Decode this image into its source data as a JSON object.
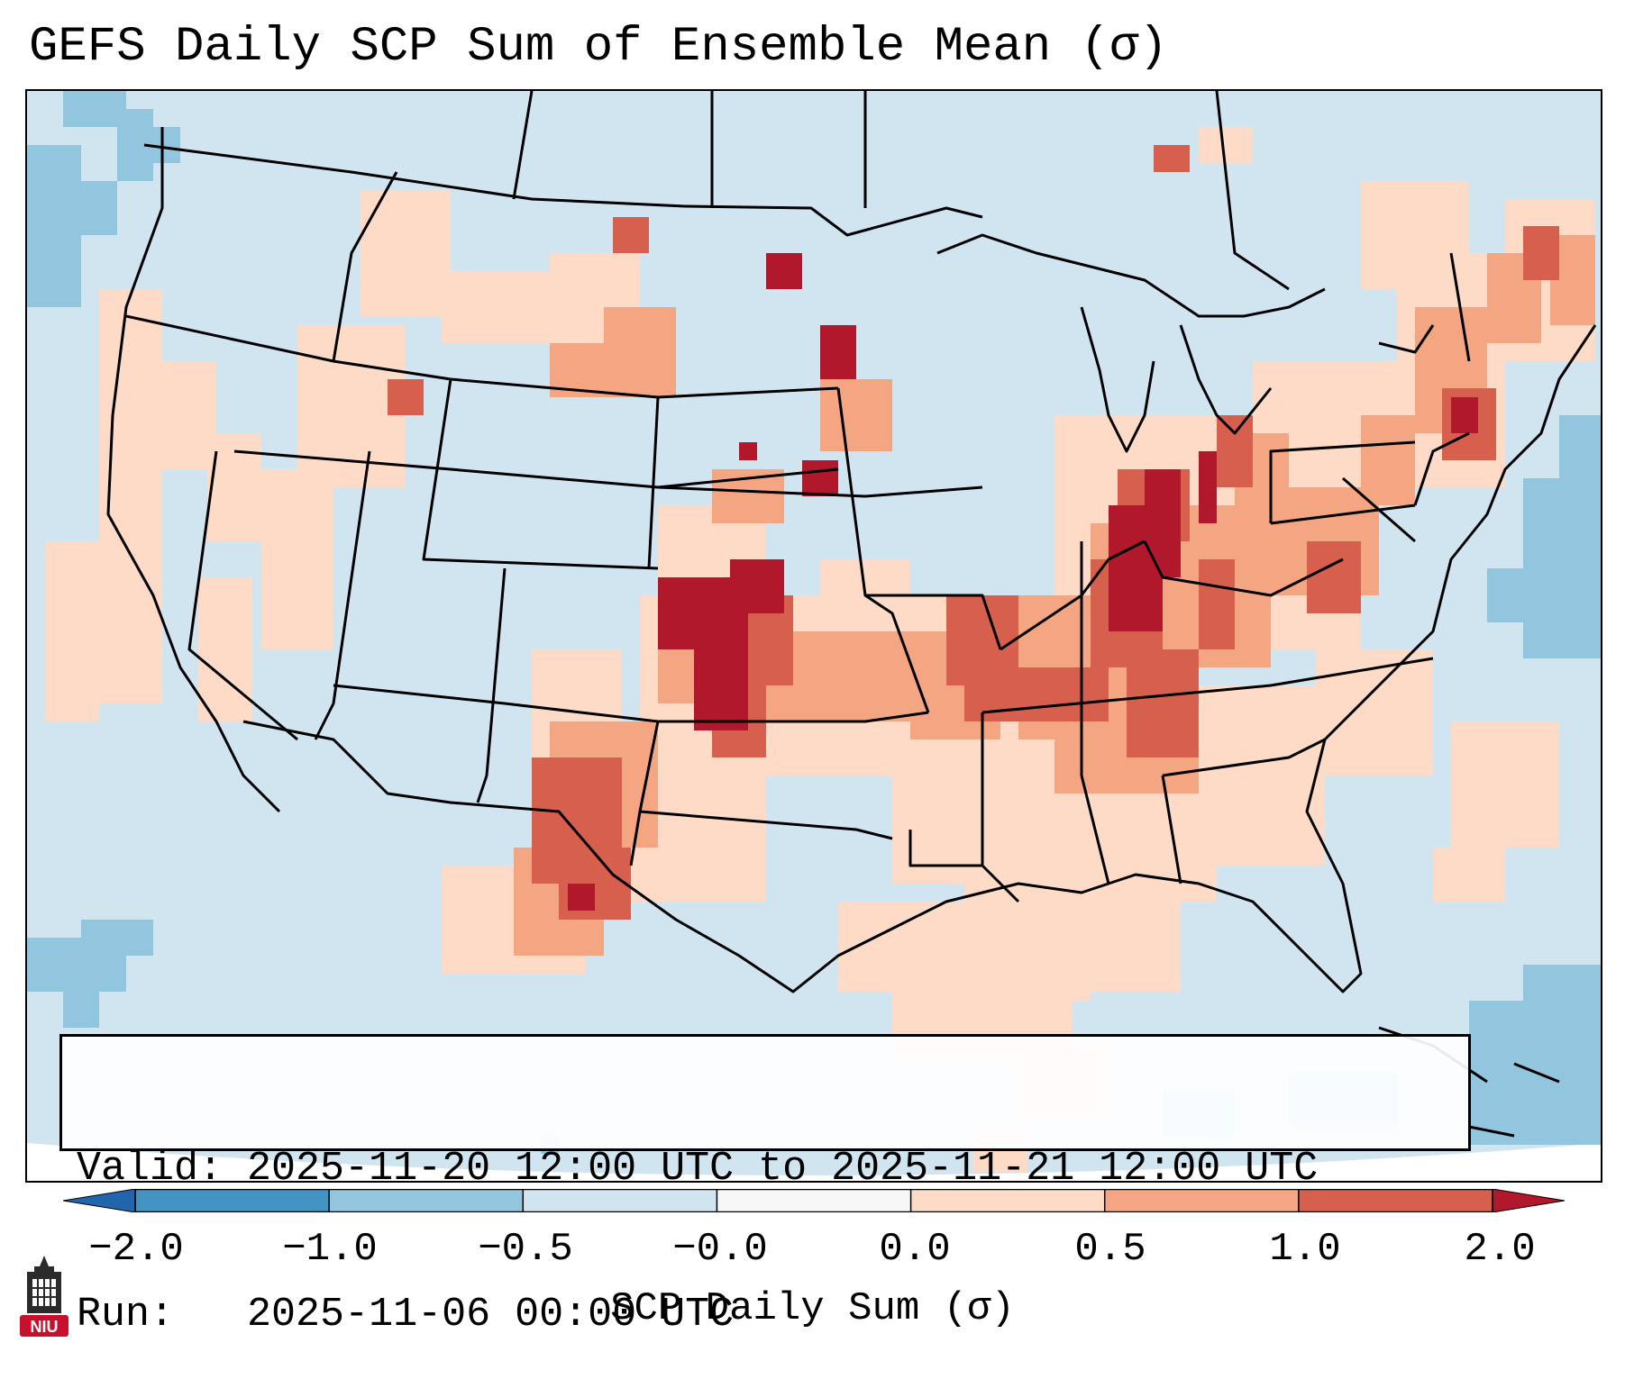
{
  "title": "GEFS Daily SCP Sum of Ensemble Mean (σ)",
  "info": {
    "valid_label": "Valid:",
    "valid_text": "2025-11-20 12:00 UTC to 2025-11-21 12:00 UTC",
    "run_label": "Run:",
    "run_text": "2025-11-06 00:00 UTC"
  },
  "colorbar": {
    "label": "SCP Daily Sum (σ)",
    "ticks": [
      "−2.0",
      "−1.0",
      "−0.5",
      "−0.0",
      "0.0",
      "0.5",
      "1.0",
      "2.0"
    ],
    "bins": [
      {
        "range": "< -2.0",
        "color": "#2166ac"
      },
      {
        "range": "-2.0 to -1.0",
        "color": "#4393c3"
      },
      {
        "range": "-1.0 to -0.5",
        "color": "#92c5de"
      },
      {
        "range": "-0.5 to -0.0",
        "color": "#d1e5f0"
      },
      {
        "range": "-0.0 to 0.0",
        "color": "#f7f7f7"
      },
      {
        "range": "0.0 to 0.5",
        "color": "#fddbc7"
      },
      {
        "range": "0.5 to 1.0",
        "color": "#f4a582"
      },
      {
        "range": "1.0 to 2.0",
        "color": "#d6604d"
      },
      {
        "range": "> 2.0",
        "color": "#b2182b"
      }
    ]
  },
  "logo": {
    "text": "NIU",
    "icon": "university-tower-icon",
    "color": "#c8102e"
  },
  "map": {
    "background_color": "#d1e5f0",
    "outside_color": "#ffffff",
    "line_color": "#000000"
  }
}
